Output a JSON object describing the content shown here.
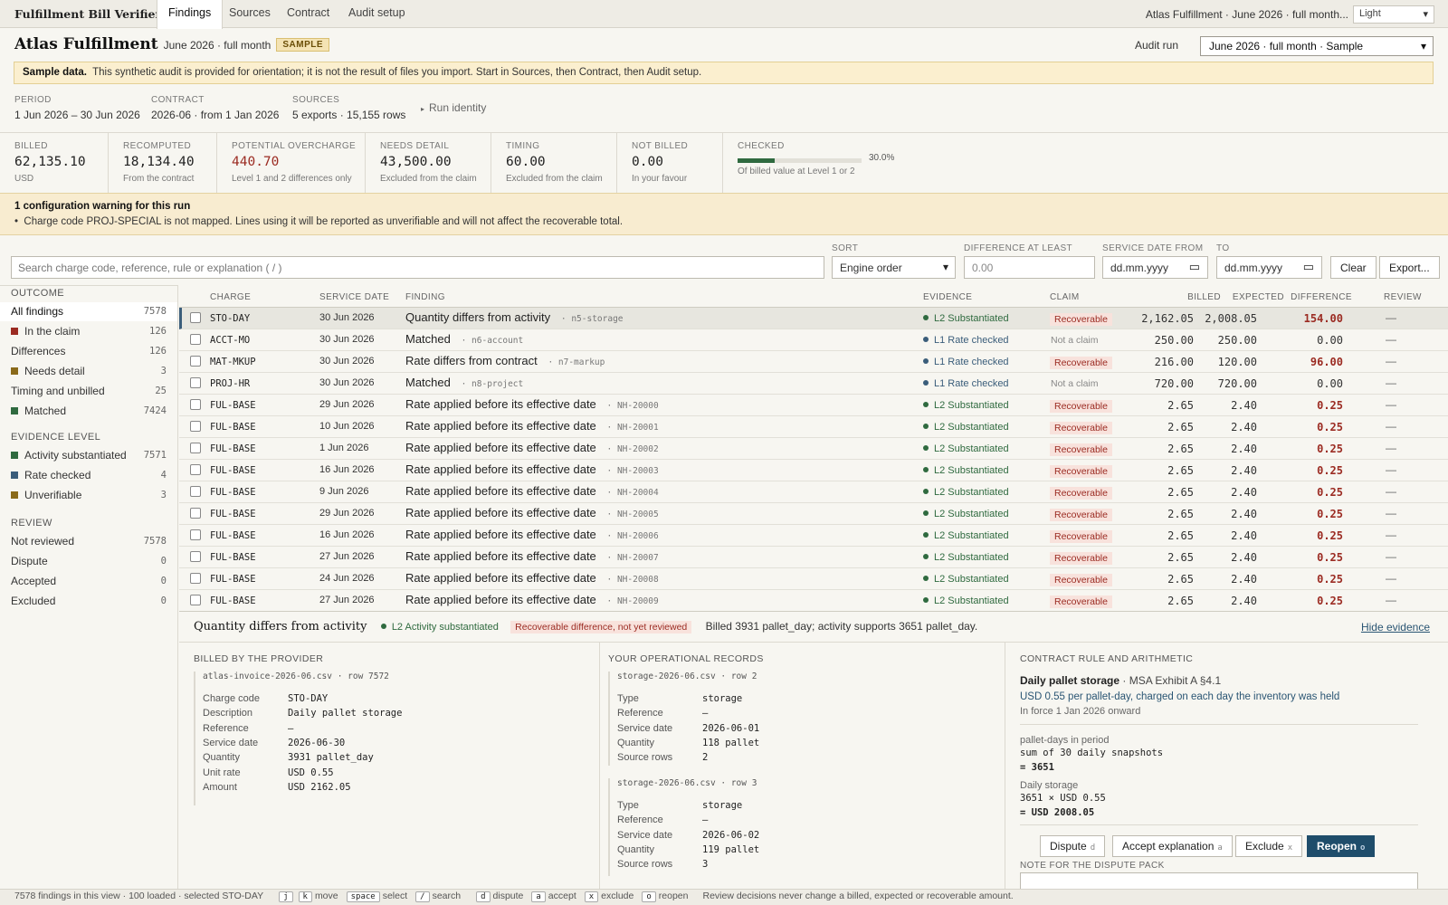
{
  "app": {
    "title": "Fulfillment Bill Verifier",
    "theme": "Light",
    "context": "Atlas Fulfillment · June 2026 · full month..."
  },
  "tabs": [
    "Findings",
    "Sources",
    "Contract",
    "Audit setup"
  ],
  "header": {
    "title": "Atlas Fulfillment",
    "subtitle": "June 2026 · full month",
    "badge": "SAMPLE",
    "audit_run_label": "Audit run",
    "audit_run_value": "June 2026 · full month · Sample"
  },
  "banner": {
    "bold": "Sample data.",
    "text": "This synthetic audit is provided for orientation; it is not the result of files you import. Start in Sources, then Contract, then Audit setup."
  },
  "meta": {
    "period_label": "PERIOD",
    "period": "1 Jun 2026 – 30 Jun 2026",
    "contract_label": "CONTRACT",
    "contract": "2026-06 · from 1 Jan 2026",
    "sources_label": "SOURCES",
    "sources": "5 exports · 15,155 rows",
    "run_identity": "Run identity"
  },
  "kpis": [
    {
      "label": "BILLED",
      "value": "62,135.10",
      "note": "USD"
    },
    {
      "label": "RECOMPUTED",
      "value": "18,134.40",
      "note": "From the contract"
    },
    {
      "label": "POTENTIAL OVERCHARGE",
      "value": "440.70",
      "note": "Level 1 and 2 differences only"
    },
    {
      "label": "NEEDS DETAIL",
      "value": "43,500.00",
      "note": "Excluded from the claim"
    },
    {
      "label": "TIMING",
      "value": "60.00",
      "note": "Excluded from the claim"
    },
    {
      "label": "NOT BILLED",
      "value": "0.00",
      "note": "In your favour"
    }
  ],
  "checked": {
    "label": "CHECKED",
    "pct": 30.0,
    "pct_text": "30.0%",
    "note": "Of billed value at Level 1 or 2"
  },
  "warning": {
    "title": "1 configuration warning for this run",
    "item": "Charge code PROJ-SPECIAL is not mapped. Lines using it will be reported as unverifiable and will not affect the recoverable total."
  },
  "filters": {
    "search_placeholder": "Search charge code, reference, rule or explanation  ( / )",
    "sort_label": "SORT",
    "sort_value": "Engine order",
    "diff_label": "DIFFERENCE AT LEAST",
    "diff_placeholder": "0.00",
    "date_from_label": "SERVICE DATE FROM",
    "date_to_label": "TO",
    "date_placeholder": "dd.mm.yyyy",
    "clear": "Clear",
    "export": "Export..."
  },
  "sidebar": {
    "outcome_title": "OUTCOME",
    "outcome": [
      {
        "label": "All findings",
        "count": "7578",
        "color": ""
      },
      {
        "label": "In the claim",
        "count": "126",
        "color": "#9b2b22"
      },
      {
        "label": "Differences",
        "count": "126",
        "color": ""
      },
      {
        "label": "Needs detail",
        "count": "3",
        "color": "#8a6a1a"
      },
      {
        "label": "Timing and unbilled",
        "count": "25",
        "color": ""
      },
      {
        "label": "Matched",
        "count": "7424",
        "color": "#2f6a3f"
      }
    ],
    "evidence_title": "EVIDENCE LEVEL",
    "evidence": [
      {
        "label": "Activity substantiated",
        "count": "7571",
        "color": "#2f6a3f"
      },
      {
        "label": "Rate checked",
        "count": "4",
        "color": "#3a5d7a"
      },
      {
        "label": "Unverifiable",
        "count": "3",
        "color": "#8a6a1a"
      }
    ],
    "review_title": "REVIEW",
    "review": [
      {
        "label": "Not reviewed",
        "count": "7578"
      },
      {
        "label": "Dispute",
        "count": "0"
      },
      {
        "label": "Accepted",
        "count": "0"
      },
      {
        "label": "Excluded",
        "count": "0"
      }
    ]
  },
  "table": {
    "headers": [
      "CHARGE",
      "SERVICE DATE",
      "FINDING",
      "EVIDENCE",
      "CLAIM",
      "BILLED",
      "EXPECTED",
      "DIFFERENCE",
      "REVIEW"
    ],
    "rows": [
      {
        "charge": "STO-DAY",
        "date": "30 Jun 2026",
        "finding": "Quantity differs from activity",
        "ref": "· n5-storage",
        "evidence": "L2 Substantiated",
        "ev_color": "#2f6a3f",
        "claim": "Recoverable",
        "billed": "2,162.05",
        "expected": "2,008.05",
        "diff": "154.00",
        "review": "—"
      },
      {
        "charge": "ACCT-MO",
        "date": "30 Jun 2026",
        "finding": "Matched",
        "ref": "· n6-account",
        "evidence": "L1 Rate checked",
        "ev_color": "#3a5d7a",
        "claim": "Not a claim",
        "billed": "250.00",
        "expected": "250.00",
        "diff": "0.00",
        "review": "—"
      },
      {
        "charge": "MAT-MKUP",
        "date": "30 Jun 2026",
        "finding": "Rate differs from contract",
        "ref": "· n7-markup",
        "evidence": "L1 Rate checked",
        "ev_color": "#3a5d7a",
        "claim": "Recoverable",
        "billed": "216.00",
        "expected": "120.00",
        "diff": "96.00",
        "review": "—"
      },
      {
        "charge": "PROJ-HR",
        "date": "30 Jun 2026",
        "finding": "Matched",
        "ref": "· n8-project",
        "evidence": "L1 Rate checked",
        "ev_color": "#3a5d7a",
        "claim": "Not a claim",
        "billed": "720.00",
        "expected": "720.00",
        "diff": "0.00",
        "review": "—"
      },
      {
        "charge": "FUL-BASE",
        "date": "29 Jun 2026",
        "finding": "Rate applied before its effective date",
        "ref": "· NH-20000",
        "evidence": "L2 Substantiated",
        "ev_color": "#2f6a3f",
        "claim": "Recoverable",
        "billed": "2.65",
        "expected": "2.40",
        "diff": "0.25",
        "review": "—"
      },
      {
        "charge": "FUL-BASE",
        "date": "10 Jun 2026",
        "finding": "Rate applied before its effective date",
        "ref": "· NH-20001",
        "evidence": "L2 Substantiated",
        "ev_color": "#2f6a3f",
        "claim": "Recoverable",
        "billed": "2.65",
        "expected": "2.40",
        "diff": "0.25",
        "review": "—"
      },
      {
        "charge": "FUL-BASE",
        "date": "1 Jun 2026",
        "finding": "Rate applied before its effective date",
        "ref": "· NH-20002",
        "evidence": "L2 Substantiated",
        "ev_color": "#2f6a3f",
        "claim": "Recoverable",
        "billed": "2.65",
        "expected": "2.40",
        "diff": "0.25",
        "review": "—"
      },
      {
        "charge": "FUL-BASE",
        "date": "16 Jun 2026",
        "finding": "Rate applied before its effective date",
        "ref": "· NH-20003",
        "evidence": "L2 Substantiated",
        "ev_color": "#2f6a3f",
        "claim": "Recoverable",
        "billed": "2.65",
        "expected": "2.40",
        "diff": "0.25",
        "review": "—"
      },
      {
        "charge": "FUL-BASE",
        "date": "9 Jun 2026",
        "finding": "Rate applied before its effective date",
        "ref": "· NH-20004",
        "evidence": "L2 Substantiated",
        "ev_color": "#2f6a3f",
        "claim": "Recoverable",
        "billed": "2.65",
        "expected": "2.40",
        "diff": "0.25",
        "review": "—"
      },
      {
        "charge": "FUL-BASE",
        "date": "29 Jun 2026",
        "finding": "Rate applied before its effective date",
        "ref": "· NH-20005",
        "evidence": "L2 Substantiated",
        "ev_color": "#2f6a3f",
        "claim": "Recoverable",
        "billed": "2.65",
        "expected": "2.40",
        "diff": "0.25",
        "review": "—"
      },
      {
        "charge": "FUL-BASE",
        "date": "16 Jun 2026",
        "finding": "Rate applied before its effective date",
        "ref": "· NH-20006",
        "evidence": "L2 Substantiated",
        "ev_color": "#2f6a3f",
        "claim": "Recoverable",
        "billed": "2.65",
        "expected": "2.40",
        "diff": "0.25",
        "review": "—"
      },
      {
        "charge": "FUL-BASE",
        "date": "27 Jun 2026",
        "finding": "Rate applied before its effective date",
        "ref": "· NH-20007",
        "evidence": "L2 Substantiated",
        "ev_color": "#2f6a3f",
        "claim": "Recoverable",
        "billed": "2.65",
        "expected": "2.40",
        "diff": "0.25",
        "review": "—"
      },
      {
        "charge": "FUL-BASE",
        "date": "24 Jun 2026",
        "finding": "Rate applied before its effective date",
        "ref": "· NH-20008",
        "evidence": "L2 Substantiated",
        "ev_color": "#2f6a3f",
        "claim": "Recoverable",
        "billed": "2.65",
        "expected": "2.40",
        "diff": "0.25",
        "review": "—"
      },
      {
        "charge": "FUL-BASE",
        "date": "27 Jun 2026",
        "finding": "Rate applied before its effective date",
        "ref": "· NH-20009",
        "evidence": "L2 Substantiated",
        "ev_color": "#2f6a3f",
        "claim": "Recoverable",
        "billed": "2.65",
        "expected": "2.40",
        "diff": "0.25",
        "review": "—"
      }
    ]
  },
  "evidence": {
    "title": "Quantity differs from activity",
    "tag": "L2 Activity substantiated",
    "flag": "Recoverable difference, not yet reviewed",
    "message": "Billed 3931 pallet_day; activity supports 3651 pallet_day.",
    "hide": "Hide evidence",
    "billed_title": "BILLED BY THE PROVIDER",
    "billed_src": "atlas-invoice-2026-06.csv · row 7572",
    "billed_fields": [
      {
        "k": "Charge code",
        "v": "STO-DAY"
      },
      {
        "k": "Description",
        "v": "Daily pallet storage"
      },
      {
        "k": "Reference",
        "v": "—"
      },
      {
        "k": "Service date",
        "v": "2026-06-30"
      },
      {
        "k": "Quantity",
        "v": "3931 pallet_day"
      },
      {
        "k": "Unit rate",
        "v": "USD 0.55"
      },
      {
        "k": "Amount",
        "v": "USD 2162.05"
      }
    ],
    "ops_title": "YOUR OPERATIONAL RECORDS",
    "ops": [
      {
        "src": "storage-2026-06.csv · row 2",
        "fields": [
          {
            "k": "Type",
            "v": "storage"
          },
          {
            "k": "Reference",
            "v": "—"
          },
          {
            "k": "Service date",
            "v": "2026-06-01"
          },
          {
            "k": "Quantity",
            "v": "118 pallet"
          },
          {
            "k": "Source rows",
            "v": "2"
          }
        ]
      },
      {
        "src": "storage-2026-06.csv · row 3",
        "fields": [
          {
            "k": "Type",
            "v": "storage"
          },
          {
            "k": "Reference",
            "v": "—"
          },
          {
            "k": "Service date",
            "v": "2026-06-02"
          },
          {
            "k": "Quantity",
            "v": "119 pallet"
          },
          {
            "k": "Source rows",
            "v": "3"
          }
        ]
      }
    ],
    "rule_title": "CONTRACT RULE AND ARITHMETIC",
    "rule_name": "Daily pallet storage",
    "rule_ref": "· MSA Exhibit A §4.1",
    "rule_desc": "USD 0.55 per pallet-day, charged on each day the inventory was held",
    "rule_force": "In force 1 Jan 2026 onward",
    "calc1_label": "pallet-days in period",
    "calc1_a": "sum of 30 daily snapshots",
    "calc1_b": "= 3651",
    "calc2_label": "Daily storage",
    "calc2_a": "3651 × USD 0.55",
    "calc2_b": "= USD 2008.05",
    "actions": [
      {
        "label": "Dispute",
        "key": "d"
      },
      {
        "label": "Accept explanation",
        "key": "a"
      },
      {
        "label": "Exclude",
        "key": "x"
      },
      {
        "label": "Reopen",
        "key": "o"
      }
    ],
    "note_label": "NOTE FOR THE DISPUTE PACK"
  },
  "footer": {
    "status": "7578 findings in this view · 100 loaded · selected STO-DAY",
    "hints": [
      {
        "keys": [
          "j",
          "k"
        ],
        "text": "move"
      },
      {
        "keys": [
          "space"
        ],
        "text": "select"
      },
      {
        "keys": [
          "/"
        ],
        "text": "search"
      },
      {
        "keys": [
          "d"
        ],
        "text": "dispute"
      },
      {
        "keys": [
          "a"
        ],
        "text": "accept"
      },
      {
        "keys": [
          "x"
        ],
        "text": "exclude"
      },
      {
        "keys": [
          "o"
        ],
        "text": "reopen"
      }
    ],
    "note": "Review decisions never change a billed, expected or recoverable amount."
  }
}
